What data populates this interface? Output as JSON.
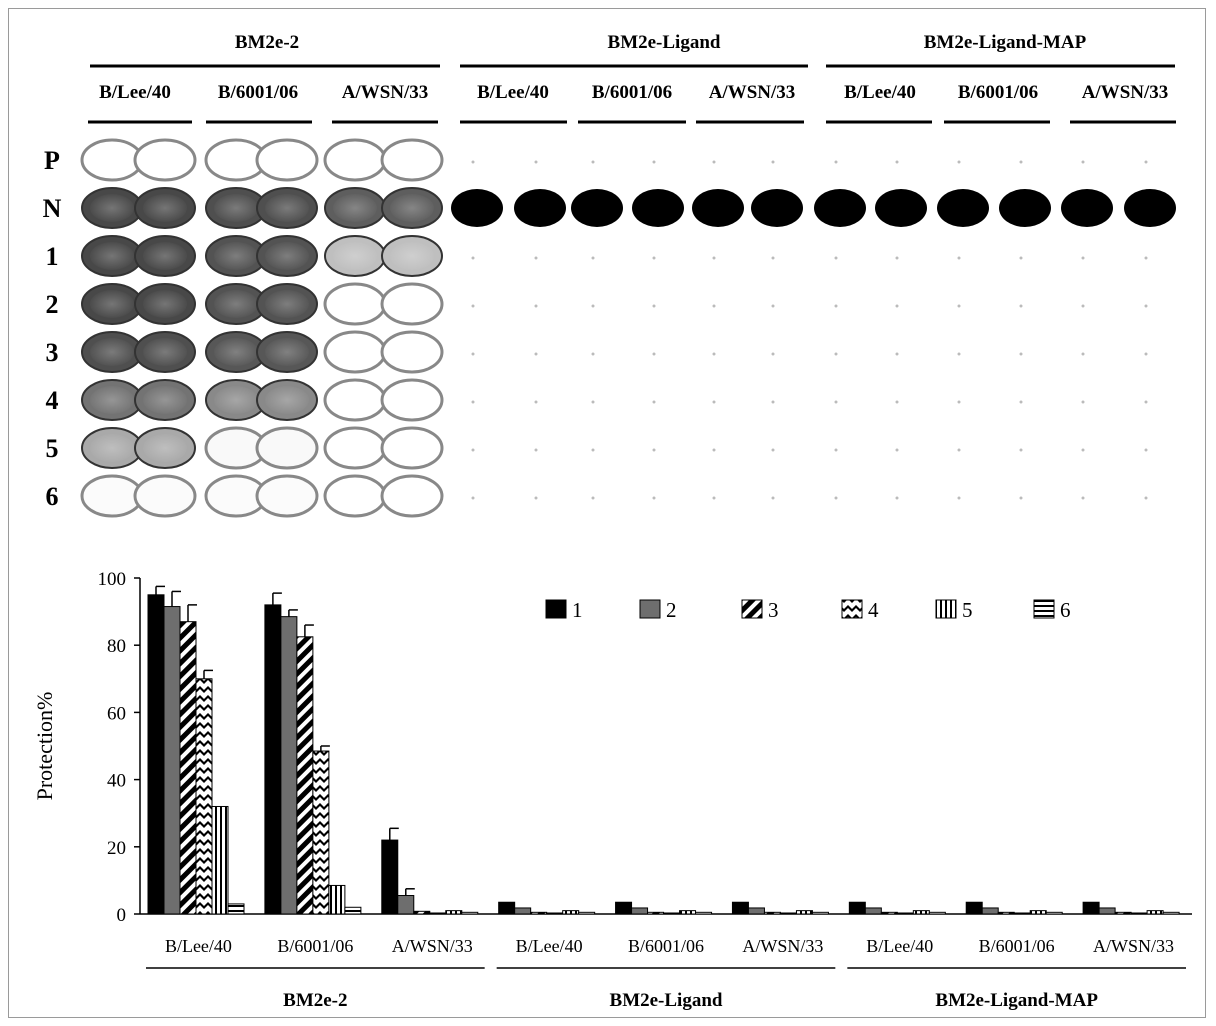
{
  "plate": {
    "groups": [
      {
        "title": "BM2e-2",
        "strains": [
          "B/Lee/40",
          "B/6001/06",
          "A/WSN/33"
        ]
      },
      {
        "title": "BM2e-Ligand",
        "strains": [
          "B/Lee/40",
          "B/6001/06",
          "A/WSN/33"
        ]
      },
      {
        "title": "BM2e-Ligand-MAP",
        "strains": [
          "B/Lee/40",
          "B/6001/06",
          "A/WSN/33"
        ]
      }
    ],
    "rows": [
      "P",
      "N",
      "1",
      "2",
      "3",
      "4",
      "5",
      "6"
    ],
    "well_darkness_note_values": {
      "BM2e-2": {
        "B/Lee/40": [
          0.0,
          0.85,
          0.85,
          0.85,
          0.82,
          0.65,
          0.4,
          0.02
        ],
        "B/6001/06": [
          0.0,
          0.82,
          0.8,
          0.8,
          0.78,
          0.55,
          0.03,
          0.02
        ],
        "A/WSN/33": [
          0.0,
          0.75,
          0.3,
          0.0,
          0.0,
          0.0,
          0.0,
          0.0
        ]
      },
      "BM2e-Ligand": {
        "N": 1.0
      },
      "BM2e-Ligand-MAP": {
        "N": 1.0
      }
    }
  },
  "chart_data": {
    "type": "bar",
    "xlabel": "",
    "ylabel": "Protection%",
    "ylim": [
      0,
      100
    ],
    "yticks": [
      0,
      20,
      40,
      60,
      80,
      100
    ],
    "groups": [
      "BM2e-2",
      "BM2e-Ligand",
      "BM2e-Ligand-MAP"
    ],
    "categories": [
      "B/Lee/40",
      "B/6001/06",
      "A/WSN/33",
      "B/Lee/40",
      "B/6001/06",
      "A/WSN/33",
      "B/Lee/40",
      "B/6001/06",
      "A/WSN/33"
    ],
    "legend_position": "top-right",
    "series": [
      {
        "name": "1",
        "pattern": "solid-black",
        "values": [
          95,
          92,
          22,
          3.5,
          3.5,
          3.5,
          3.5,
          3.5,
          3.5
        ],
        "errors": [
          2.5,
          3.5,
          3.5,
          0,
          0,
          0,
          0,
          0,
          0
        ]
      },
      {
        "name": "2",
        "pattern": "solid-gray",
        "values": [
          91.5,
          88.5,
          5.5,
          1.8,
          1.8,
          1.8,
          1.8,
          1.8,
          1.8
        ],
        "errors": [
          4.5,
          2,
          2,
          0,
          0,
          0,
          0,
          0,
          0
        ]
      },
      {
        "name": "3",
        "pattern": "diagonal-stripes",
        "values": [
          87,
          82.5,
          0.8,
          0.5,
          0.5,
          0.5,
          0.5,
          0.5,
          0.5
        ],
        "errors": [
          5,
          3.5,
          0,
          0,
          0,
          0,
          0,
          0,
          0
        ]
      },
      {
        "name": "4",
        "pattern": "chevron-stripes",
        "values": [
          70,
          48.5,
          0.3,
          0.3,
          0.3,
          0.3,
          0.3,
          0.3,
          0.3
        ],
        "errors": [
          2.5,
          1.5,
          0,
          0,
          0,
          0,
          0,
          0,
          0
        ]
      },
      {
        "name": "5",
        "pattern": "vertical-stripes",
        "values": [
          32,
          8.5,
          1,
          1,
          1,
          1,
          1,
          1,
          1
        ],
        "errors": [
          0,
          0,
          0,
          0,
          0,
          0,
          0,
          0,
          0
        ]
      },
      {
        "name": "6",
        "pattern": "horizontal-stripes",
        "values": [
          3,
          2,
          0.5,
          0.5,
          0.5,
          0.5,
          0.5,
          0.5,
          0.5
        ],
        "errors": [
          0,
          0,
          0,
          0,
          0,
          0,
          0,
          0,
          0
        ]
      }
    ]
  }
}
